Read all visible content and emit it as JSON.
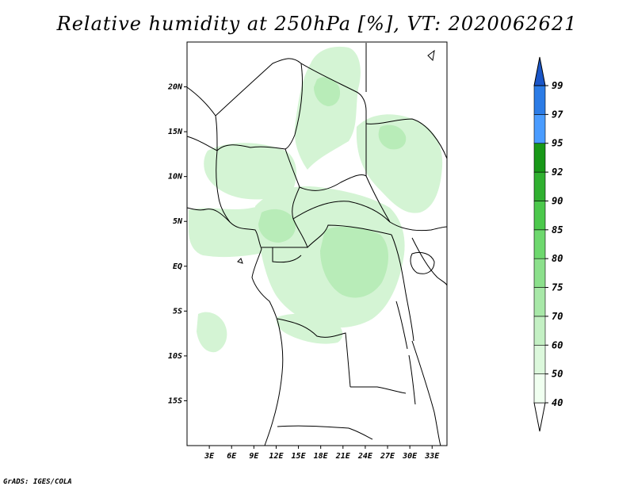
{
  "title": "Relative humidity at 250hPa [%], VT: 2020062621",
  "credit": "GrADS: IGES/COLA",
  "map": {
    "lon_range": [
      0,
      35
    ],
    "lat_range": [
      -20,
      25
    ],
    "lat_ticks": [
      {
        "lat": 20,
        "label": "20N"
      },
      {
        "lat": 15,
        "label": "15N"
      },
      {
        "lat": 10,
        "label": "10N"
      },
      {
        "lat": 5,
        "label": "5N"
      },
      {
        "lat": 0,
        "label": "EQ"
      },
      {
        "lat": -5,
        "label": "5S"
      },
      {
        "lat": -10,
        "label": "10S"
      },
      {
        "lat": -15,
        "label": "15S"
      }
    ],
    "lon_ticks": [
      {
        "lon": 3,
        "label": "3E"
      },
      {
        "lon": 6,
        "label": "6E"
      },
      {
        "lon": 9,
        "label": "9E"
      },
      {
        "lon": 12,
        "label": "12E"
      },
      {
        "lon": 15,
        "label": "15E"
      },
      {
        "lon": 18,
        "label": "18E"
      },
      {
        "lon": 21,
        "label": "21E"
      },
      {
        "lon": 24,
        "label": "24E"
      },
      {
        "lon": 27,
        "label": "27E"
      },
      {
        "lon": 30,
        "label": "30E"
      },
      {
        "lon": 33,
        "label": "33E"
      }
    ]
  },
  "colorbar": {
    "levels": [
      "40",
      "50",
      "60",
      "70",
      "75",
      "80",
      "85",
      "90",
      "92",
      "95",
      "97",
      "99"
    ],
    "colors": [
      "#f0fff0",
      "#dcf8dc",
      "#c4f0c4",
      "#a8e8a8",
      "#8ce08c",
      "#6ed86e",
      "#4cc84c",
      "#30b030",
      "#189818",
      "#4a9cff",
      "#2c7ce6",
      "#1a5ccc"
    ],
    "low_color": "#ffffff",
    "high_color": "#1a56c8"
  },
  "colors": {
    "light_green": "#d4f4d4",
    "mid_green": "#b8ecb8"
  }
}
